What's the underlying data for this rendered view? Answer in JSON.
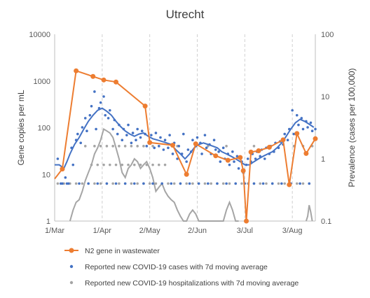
{
  "chart_data": {
    "type": "line",
    "title": "Utrecht",
    "ylabel_left": "Gene copies per mL",
    "ylabel_right": "Prevalence (cases per 100,000)",
    "y_scale": "log",
    "ylim_left": [
      1,
      10000
    ],
    "ylim_right": [
      0.1,
      100
    ],
    "xlim_days": [
      0,
      170
    ],
    "x_ticks": [
      {
        "label": "1/Mar",
        "day": 0
      },
      {
        "label": "1/Apr",
        "day": 31
      },
      {
        "label": "2/May",
        "day": 62
      },
      {
        "label": "2/Jun",
        "day": 93
      },
      {
        "label": "3/Jul",
        "day": 124
      },
      {
        "label": "3/Aug",
        "day": 155
      }
    ],
    "y_ticks_left": [
      "1",
      "10",
      "100",
      "1000",
      "10000"
    ],
    "y_ticks_right": [
      "0.1",
      "1",
      "10",
      "100"
    ],
    "grid": "vertical-dashed",
    "colors": {
      "wastewater": "#ed7d31",
      "cases": "#4472c4",
      "hospital": "#a5a5a5"
    },
    "series": [
      {
        "name": "N2 gene in wastewater",
        "axis": "left",
        "style": "line-markers",
        "x": [
          -2,
          5,
          14,
          25,
          32,
          40,
          59,
          62,
          77,
          86,
          92,
          105,
          113,
          121,
          123,
          125,
          128,
          133,
          140,
          149,
          153,
          158,
          164,
          170
        ],
        "y": [
          8,
          13,
          1650,
          1250,
          1050,
          950,
          290,
          48,
          42,
          10,
          45,
          25,
          20,
          23,
          12,
          1,
          30,
          32,
          38,
          55,
          6,
          75,
          28,
          58
        ]
      },
      {
        "name": "Reported new COVID-19 cases with 7d moving average",
        "axis": "right",
        "style": "line-with-scatter",
        "x": [
          0,
          3,
          6,
          8,
          10,
          13,
          16,
          19,
          22,
          25,
          28,
          31,
          34,
          37,
          40,
          43,
          46,
          49,
          52,
          55,
          58,
          61,
          64,
          67,
          70,
          73,
          76,
          79,
          82,
          85,
          88,
          91,
          94,
          97,
          100,
          103,
          106,
          109,
          112,
          115,
          118,
          121,
          124,
          127,
          130,
          133,
          136,
          139,
          142,
          145,
          148,
          151,
          154,
          157,
          160,
          163,
          166,
          169
        ],
        "y": [
          0.8,
          0.8,
          0.7,
          0.9,
          1.2,
          1.7,
          2.2,
          3.0,
          4.0,
          5.0,
          6.0,
          6.5,
          5.8,
          5.0,
          4.0,
          3.3,
          2.8,
          2.5,
          2.3,
          2.5,
          2.6,
          2.3,
          2.1,
          2.0,
          1.9,
          1.8,
          1.7,
          1.4,
          1.2,
          1.0,
          1.2,
          1.5,
          1.7,
          1.8,
          1.7,
          1.6,
          1.5,
          1.3,
          1.2,
          1.1,
          1.0,
          0.9,
          0.8,
          0.8,
          0.9,
          1.0,
          1.1,
          1.2,
          1.3,
          1.5,
          1.8,
          2.3,
          3.0,
          3.8,
          4.3,
          4.0,
          3.6,
          3.2
        ],
        "scatter_x": [
          2,
          4,
          7,
          9,
          11,
          12,
          14,
          15,
          17,
          18,
          20,
          21,
          23,
          24,
          26,
          27,
          29,
          30,
          32,
          33,
          35,
          36,
          38,
          39,
          41,
          42,
          44,
          45,
          47,
          48,
          50,
          51,
          53,
          54,
          56,
          57,
          59,
          60,
          63,
          65,
          66,
          68,
          69,
          71,
          72,
          74,
          75,
          77,
          78,
          80,
          81,
          83,
          84,
          86,
          87,
          89,
          90,
          92,
          93,
          95,
          96,
          98,
          99,
          101,
          102,
          104,
          105,
          107,
          108,
          110,
          111,
          113,
          114,
          116,
          117,
          119,
          120,
          122,
          123,
          125,
          126,
          128,
          129,
          131,
          132,
          134,
          135,
          137,
          138,
          140,
          141,
          143,
          144,
          146,
          147,
          149,
          150,
          152,
          153,
          155,
          156,
          158,
          159,
          161,
          162,
          164,
          165,
          167,
          168,
          170,
          5,
          8,
          16,
          22,
          28,
          34,
          40,
          46,
          52,
          58,
          64,
          70,
          76,
          82,
          88,
          94,
          100,
          106,
          112,
          118,
          124,
          130,
          136,
          142,
          148,
          154,
          160,
          166
        ],
        "scatter_y": [
          1.0,
          0.4,
          0.5,
          0.4,
          1.5,
          0.8,
          2.0,
          2.5,
          1.8,
          3.2,
          4.5,
          2.8,
          5.0,
          7.0,
          12.0,
          3.0,
          6.5,
          8.0,
          10.0,
          5.0,
          4.5,
          6.0,
          3.0,
          4.2,
          2.5,
          3.5,
          2.0,
          3.0,
          2.4,
          3.5,
          1.8,
          2.6,
          2.0,
          3.0,
          2.2,
          2.8,
          2.5,
          1.6,
          2.4,
          1.5,
          2.6,
          1.6,
          2.2,
          1.4,
          2.0,
          1.5,
          2.4,
          1.2,
          1.8,
          1.0,
          1.6,
          1.2,
          2.5,
          0.9,
          1.4,
          1.3,
          2.0,
          1.6,
          2.2,
          1.8,
          1.2,
          2.4,
          1.5,
          1.7,
          1.2,
          2.0,
          1.4,
          1.3,
          0.9,
          1.5,
          1.0,
          1.2,
          0.8,
          1.3,
          0.9,
          1.1,
          0.7,
          0.9,
          0.6,
          0.8,
          1.0,
          0.9,
          1.2,
          1.0,
          1.3,
          1.1,
          1.4,
          1.0,
          1.5,
          1.2,
          1.6,
          1.3,
          1.8,
          1.5,
          1.9,
          1.7,
          2.5,
          2.0,
          3.0,
          6.0,
          2.5,
          5.0,
          3.5,
          4.5,
          3.0,
          4.0,
          3.2,
          3.8,
          2.8,
          3.0,
          0.4,
          0.4,
          0.4,
          0.4,
          0.4,
          0.4,
          0.4,
          0.4,
          0.4,
          0.4,
          0.4,
          0.4,
          0.4,
          0.4,
          0.4,
          0.4,
          0.4,
          0.4,
          0.4,
          0.4,
          0.4,
          0.4,
          0.4,
          0.4,
          0.4,
          0.4,
          0.4,
          0.4
        ]
      },
      {
        "name": "Reported new COVID-19 hospitalizations with 7d moving average",
        "axis": "right",
        "style": "line-with-scatter",
        "x": [
          10,
          12,
          14,
          16,
          18,
          20,
          22,
          24,
          26,
          28,
          30,
          32,
          34,
          36,
          38,
          40,
          42,
          44,
          46,
          48,
          50,
          52,
          54,
          56,
          58,
          60,
          62,
          64,
          66,
          68,
          70,
          72,
          74,
          76,
          78,
          80,
          82,
          84,
          86,
          88,
          90,
          92,
          94,
          96,
          98,
          100,
          102,
          104,
          106,
          108,
          110,
          112,
          114,
          116,
          118,
          120
        ],
        "y": [
          0.1,
          0.15,
          0.2,
          0.22,
          0.3,
          0.45,
          0.6,
          0.8,
          1.2,
          1.5,
          2.0,
          3.0,
          2.8,
          2.6,
          2.2,
          1.5,
          1.0,
          0.6,
          0.5,
          0.7,
          0.8,
          1.0,
          0.9,
          0.7,
          0.8,
          0.9,
          0.7,
          0.5,
          0.3,
          0.35,
          0.4,
          0.3,
          0.25,
          0.22,
          0.2,
          0.15,
          0.12,
          0.1,
          0.1,
          0.13,
          0.15,
          0.13,
          0.1,
          0.1,
          0.1,
          0.1,
          0.1,
          0.1,
          0.1,
          0.1,
          0.1,
          0.15,
          0.2,
          0.15,
          0.1,
          0.1
        ],
        "x2": [
          164,
          165,
          166,
          167,
          168
        ],
        "y2": [
          0.1,
          0.12,
          0.18,
          0.14,
          0.1
        ],
        "scatter_x": [
          2,
          6,
          10,
          14,
          18,
          22,
          26,
          30,
          34,
          38,
          42,
          46,
          50,
          54,
          58,
          62,
          66,
          70,
          74,
          78,
          82,
          86,
          90,
          94,
          98,
          102,
          106,
          110,
          114,
          118,
          122,
          126,
          130,
          134,
          138,
          142,
          146,
          150,
          154,
          158,
          162,
          166,
          24,
          28,
          32,
          36,
          40,
          44,
          48,
          52,
          56,
          60,
          64,
          68,
          72,
          20,
          26,
          30,
          34,
          38,
          42,
          46,
          50,
          54,
          58,
          64,
          80,
          92,
          100,
          112,
          130,
          140,
          156,
          162,
          168
        ],
        "scatter_y": [
          0.4,
          0.4,
          0.4,
          0.4,
          0.4,
          0.4,
          0.4,
          0.4,
          0.4,
          0.4,
          0.4,
          0.4,
          0.4,
          0.4,
          0.4,
          0.4,
          0.4,
          0.4,
          0.4,
          0.4,
          0.4,
          0.4,
          0.4,
          0.4,
          0.4,
          0.4,
          0.4,
          0.4,
          0.4,
          0.4,
          0.4,
          0.4,
          0.4,
          0.4,
          0.4,
          0.4,
          0.4,
          0.4,
          0.4,
          0.4,
          0.4,
          0.4,
          0.8,
          0.8,
          0.8,
          0.8,
          0.8,
          0.8,
          0.8,
          0.8,
          0.8,
          0.8,
          0.8,
          0.8,
          0.8,
          1.6,
          1.6,
          1.6,
          1.6,
          1.6,
          1.6,
          1.6,
          1.6,
          1.6,
          1.6,
          1.6,
          1.6,
          1.6,
          1.6,
          1.6,
          1.6,
          1.6,
          1.6,
          1.6,
          1.6
        ]
      }
    ]
  }
}
